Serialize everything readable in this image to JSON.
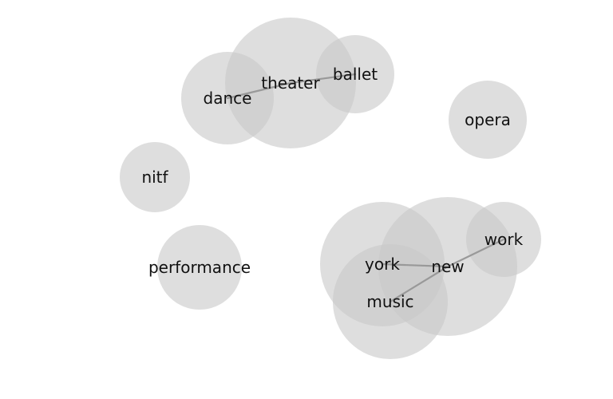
{
  "diagram": {
    "type": "word-network",
    "colors": {
      "node_fill": "#c8c8c8",
      "edge": "#999999",
      "label": "#111111",
      "background": "#ffffff"
    },
    "nodes": [
      {
        "id": "theater",
        "label": "theater"
      },
      {
        "id": "dance",
        "label": "dance"
      },
      {
        "id": "ballet",
        "label": "ballet"
      },
      {
        "id": "opera",
        "label": "opera"
      },
      {
        "id": "nitf",
        "label": "nitf"
      },
      {
        "id": "performance",
        "label": "performance"
      },
      {
        "id": "new",
        "label": "new"
      },
      {
        "id": "york",
        "label": "york"
      },
      {
        "id": "music",
        "label": "music"
      },
      {
        "id": "work",
        "label": "work"
      }
    ],
    "edges": [
      {
        "source": "dance",
        "target": "theater"
      },
      {
        "source": "theater",
        "target": "ballet"
      },
      {
        "source": "york",
        "target": "new"
      },
      {
        "source": "music",
        "target": "new"
      },
      {
        "source": "new",
        "target": "work"
      }
    ]
  }
}
